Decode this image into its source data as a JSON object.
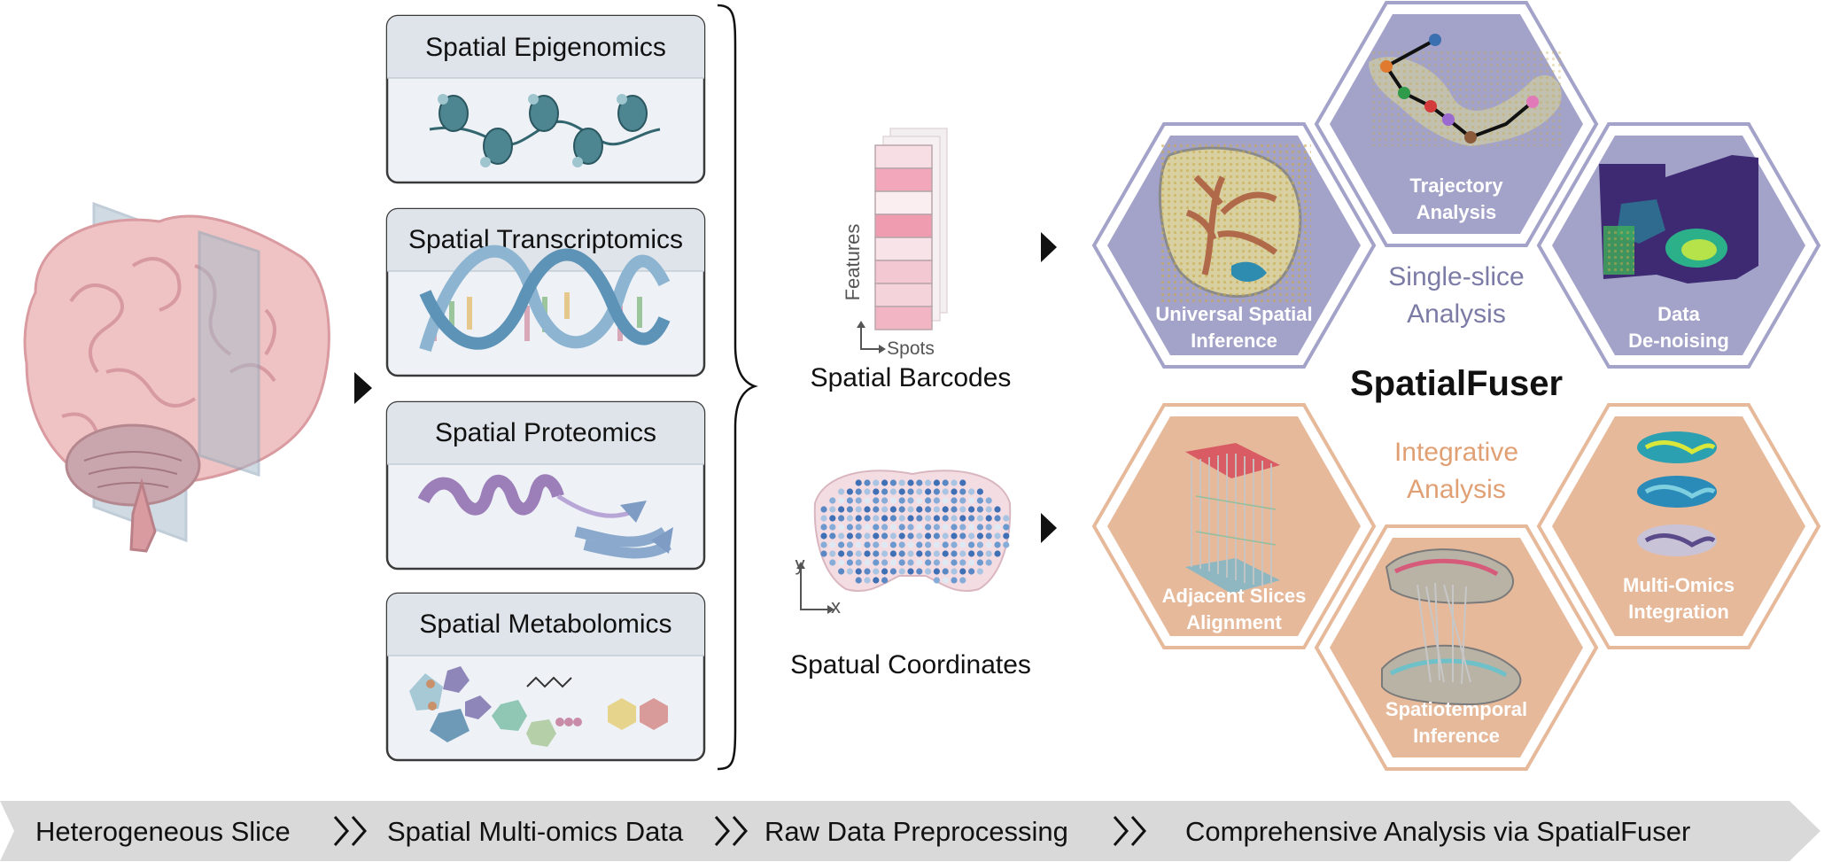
{
  "modalities": [
    {
      "title": "Spatial Epigenomics"
    },
    {
      "title": "Spatial Transcriptomics"
    },
    {
      "title": "Spatial Proteomics"
    },
    {
      "title": "Spatial Metabolomics"
    }
  ],
  "barcodes": {
    "features_label": "Features",
    "spots_label": "Spots",
    "caption": "Spatial Barcodes"
  },
  "coordinates": {
    "y_label": "y",
    "x_label": "x",
    "caption": "Spatual Coordinates"
  },
  "brand": "SpatialFuser",
  "single_slice": {
    "line1": "Single-slice",
    "line2": "Analysis",
    "hexes": [
      {
        "line1": "Universal Spatial",
        "line2": "Inference"
      },
      {
        "line1": "Trajectory",
        "line2": "Analysis"
      },
      {
        "line1": "Data",
        "line2": "De-noising"
      }
    ]
  },
  "integrative": {
    "line1": "Integrative",
    "line2": "Analysis",
    "hexes": [
      {
        "line1": "Adjacent Slices",
        "line2": "Alignment"
      },
      {
        "line1": "Spatiotemporal",
        "line2": "Inference"
      },
      {
        "line1": "Multi-Omics",
        "line2": "Integration"
      }
    ]
  },
  "pipeline": [
    {
      "label": "Heterogeneous Slice"
    },
    {
      "label": "Spatial Multi-omics Data"
    },
    {
      "label": "Raw Data Preprocessing"
    },
    {
      "label": "Comprehensive Analysis via SpatialFuser"
    }
  ],
  "colors": {
    "single_hex": "#a3a3c9",
    "single_text": "#7b7ba6",
    "integrative_hex": "#e6b99a",
    "integrative_text": "#e0a074",
    "card_header": "#dfe4ea",
    "card_body": "#eef2f7",
    "pipeline_band": "#d9d9d9"
  }
}
